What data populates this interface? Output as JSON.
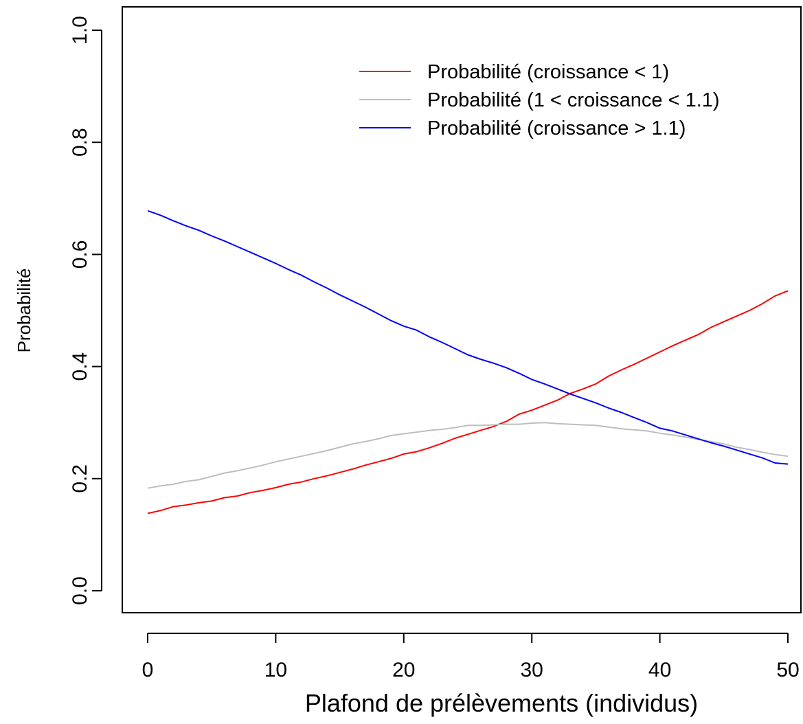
{
  "chart_data": {
    "type": "line",
    "title": "",
    "xlabel": "Plafond de prélèvements (individus)",
    "ylabel": "Probabilité",
    "xlim": [
      0,
      50
    ],
    "ylim": [
      0,
      1
    ],
    "x_ticks": [
      0,
      10,
      20,
      30,
      40,
      50
    ],
    "y_ticks": [
      0.0,
      0.2,
      0.4,
      0.6,
      0.8,
      1.0
    ],
    "x_tick_labels": [
      "0",
      "10",
      "20",
      "30",
      "40",
      "50"
    ],
    "y_tick_labels": [
      "0.0",
      "0.2",
      "0.4",
      "0.6",
      "0.8",
      "1.0"
    ],
    "grid": false,
    "legend_position": "top-right",
    "x": [
      0,
      1,
      2,
      3,
      4,
      5,
      6,
      7,
      8,
      9,
      10,
      11,
      12,
      13,
      14,
      15,
      16,
      17,
      18,
      19,
      20,
      21,
      22,
      23,
      24,
      25,
      26,
      27,
      28,
      29,
      30,
      31,
      32,
      33,
      34,
      35,
      36,
      37,
      38,
      39,
      40,
      41,
      42,
      43,
      44,
      45,
      46,
      47,
      48,
      49,
      50
    ],
    "series": [
      {
        "name": "Probabilité (croissance < 1)",
        "color": "#ff0000",
        "values": [
          0.138,
          0.143,
          0.15,
          0.153,
          0.157,
          0.16,
          0.166,
          0.169,
          0.175,
          0.179,
          0.184,
          0.19,
          0.194,
          0.2,
          0.205,
          0.211,
          0.217,
          0.224,
          0.23,
          0.236,
          0.244,
          0.248,
          0.255,
          0.263,
          0.272,
          0.279,
          0.286,
          0.293,
          0.302,
          0.315,
          0.322,
          0.331,
          0.34,
          0.352,
          0.36,
          0.369,
          0.383,
          0.394,
          0.404,
          0.415,
          0.426,
          0.437,
          0.447,
          0.457,
          0.47,
          0.48,
          0.49,
          0.5,
          0.512,
          0.526,
          0.535
        ]
      },
      {
        "name": "Probabilité (1 < croissance < 1.1)",
        "color": "#bebebe",
        "values": [
          0.183,
          0.187,
          0.19,
          0.195,
          0.198,
          0.204,
          0.21,
          0.214,
          0.219,
          0.224,
          0.23,
          0.235,
          0.24,
          0.245,
          0.25,
          0.256,
          0.262,
          0.266,
          0.271,
          0.277,
          0.28,
          0.283,
          0.286,
          0.288,
          0.291,
          0.295,
          0.295,
          0.296,
          0.297,
          0.297,
          0.299,
          0.3,
          0.298,
          0.297,
          0.296,
          0.295,
          0.292,
          0.289,
          0.287,
          0.285,
          0.281,
          0.278,
          0.274,
          0.27,
          0.266,
          0.262,
          0.256,
          0.252,
          0.247,
          0.243,
          0.24
        ]
      },
      {
        "name": "Probabilité (croissance > 1.1)",
        "color": "#0000ff",
        "values": [
          0.678,
          0.67,
          0.66,
          0.651,
          0.643,
          0.633,
          0.624,
          0.614,
          0.604,
          0.594,
          0.584,
          0.573,
          0.563,
          0.551,
          0.54,
          0.528,
          0.517,
          0.506,
          0.494,
          0.482,
          0.472,
          0.465,
          0.453,
          0.443,
          0.432,
          0.421,
          0.413,
          0.406,
          0.398,
          0.388,
          0.377,
          0.369,
          0.36,
          0.351,
          0.343,
          0.335,
          0.326,
          0.318,
          0.309,
          0.3,
          0.29,
          0.285,
          0.278,
          0.271,
          0.264,
          0.258,
          0.251,
          0.244,
          0.237,
          0.228,
          0.226
        ]
      }
    ]
  }
}
